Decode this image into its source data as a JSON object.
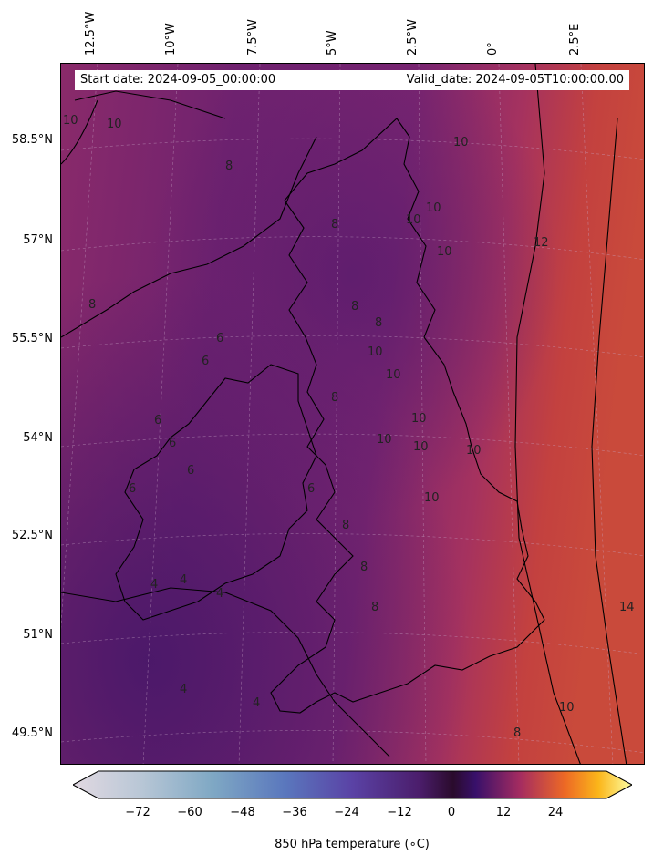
{
  "header": {
    "start_date": "Start date: 2024-09-05_00:00:00",
    "valid_date": "Valid_date: 2024-09-05T10:00:00.00"
  },
  "longitude_labels": [
    "12.5°W",
    "10°W",
    "7.5°W",
    "5°W",
    "2.5°W",
    "0°",
    "2.5°E"
  ],
  "latitude_labels": [
    "58.5°N",
    "57°N",
    "55.5°N",
    "54°N",
    "52.5°N",
    "51°N",
    "49.5°N"
  ],
  "contour_labels": [
    "10",
    "10",
    "8",
    "8",
    "8",
    "10",
    "10",
    "10",
    "10",
    "12",
    "8",
    "10",
    "8",
    "6",
    "6",
    "10",
    "10",
    "10",
    "10",
    "10",
    "10",
    "8",
    "6",
    "6",
    "6",
    "6",
    "8",
    "8",
    "8",
    "6",
    "4",
    "4",
    "4",
    "4",
    "4",
    "14",
    "10",
    "8"
  ],
  "colorbar": {
    "label": "850 hPa temperature (∘C)",
    "ticks": [
      "−72",
      "−60",
      "−48",
      "−36",
      "−24",
      "−12",
      "0",
      "12",
      "24"
    ],
    "range": [
      -80,
      32
    ],
    "extend": "both",
    "colormap": "twilight-to-inferno"
  },
  "field": {
    "colors": {
      "cold_land": "#4a1a6b",
      "mid": "#7a2370",
      "warm_sea_west": "#8f2a6a",
      "warm_east": "#c8423f"
    }
  }
}
